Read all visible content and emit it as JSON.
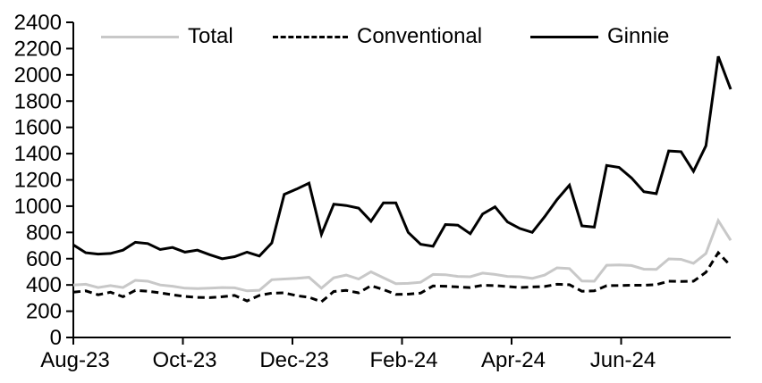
{
  "chart_data": {
    "type": "line",
    "title": "",
    "xlabel": "",
    "ylabel": "",
    "ylim": [
      0,
      2400
    ],
    "y_ticks": [
      0,
      200,
      400,
      600,
      800,
      1000,
      1200,
      1400,
      1600,
      1800,
      2000,
      2200,
      2400
    ],
    "x_tick_labels": [
      "Aug-23",
      "Oct-23",
      "Dec-23",
      "Feb-24",
      "Apr-24",
      "Jun-24"
    ],
    "x_range_note": "weekly points, Aug-23 through Aug-24",
    "grid": false,
    "legend_position": "top",
    "series": [
      {
        "name": "Total",
        "color": "#c8c8c8",
        "dash": "solid",
        "values": [
          400,
          405,
          380,
          395,
          380,
          435,
          428,
          400,
          390,
          375,
          372,
          375,
          380,
          378,
          355,
          360,
          440,
          445,
          450,
          458,
          375,
          455,
          475,
          445,
          500,
          455,
          410,
          412,
          420,
          480,
          478,
          465,
          462,
          490,
          480,
          465,
          462,
          450,
          475,
          530,
          525,
          430,
          428,
          550,
          552,
          548,
          520,
          518,
          598,
          595,
          565,
          640,
          890,
          740
        ]
      },
      {
        "name": "Conventional",
        "color": "#000000",
        "dash": "dashed",
        "values": [
          345,
          355,
          325,
          345,
          310,
          358,
          352,
          340,
          325,
          312,
          305,
          303,
          310,
          320,
          278,
          320,
          338,
          340,
          318,
          306,
          272,
          350,
          358,
          340,
          394,
          365,
          328,
          330,
          338,
          392,
          390,
          385,
          380,
          398,
          395,
          388,
          380,
          385,
          388,
          405,
          402,
          352,
          355,
          394,
          396,
          398,
          398,
          402,
          428,
          426,
          428,
          496,
          645,
          545
        ]
      },
      {
        "name": "Ginnie",
        "color": "#000000",
        "dash": "solid",
        "values": [
          705,
          645,
          635,
          640,
          665,
          725,
          715,
          670,
          685,
          650,
          665,
          630,
          600,
          615,
          650,
          620,
          720,
          1090,
          1130,
          1175,
          785,
          1015,
          1005,
          985,
          885,
          1025,
          1025,
          800,
          710,
          695,
          860,
          855,
          790,
          940,
          995,
          880,
          830,
          800,
          920,
          1050,
          1160,
          850,
          840,
          1310,
          1295,
          1215,
          1110,
          1095,
          1420,
          1415,
          1265,
          1460,
          2140,
          1890
        ]
      }
    ]
  }
}
